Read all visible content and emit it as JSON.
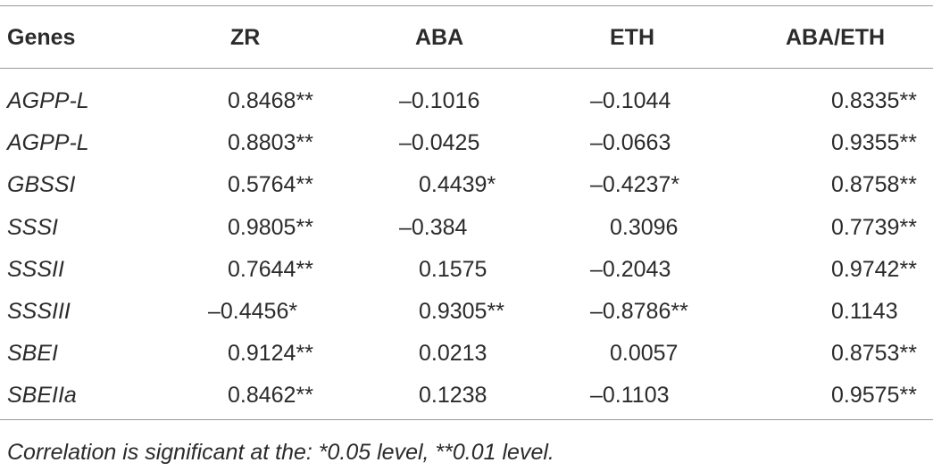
{
  "table": {
    "header": [
      "Genes",
      "ZR",
      "ABA",
      "ETH",
      "ABA/ETH"
    ],
    "rows": [
      [
        "AGPP-L",
        "0.8468**",
        "–0.1016",
        "–0.1044",
        "0.8335**"
      ],
      [
        "AGPP-L",
        "0.8803**",
        "–0.0425",
        "–0.0663",
        "0.9355**"
      ],
      [
        "GBSSI",
        "0.5764**",
        "0.4439*",
        "–0.4237*",
        "0.8758**"
      ],
      [
        "SSSI",
        "0.9805**",
        "–0.384",
        "0.3096",
        "0.7739**"
      ],
      [
        "SSSII",
        "0.7644**",
        "0.1575",
        "–0.2043",
        "0.9742**"
      ],
      [
        "SSSIII",
        "–0.4456*",
        "0.9305**",
        "–0.8786**",
        "0.1143"
      ],
      [
        "SBEI",
        "0.9124**",
        "0.0213",
        "0.0057",
        "0.8753**"
      ],
      [
        "SBEIIa",
        "0.8462**",
        "0.1238",
        "–0.1103",
        "0.9575**"
      ]
    ],
    "footnote": "Correlation is significant at the: *0.05 level, **0.01 level."
  }
}
